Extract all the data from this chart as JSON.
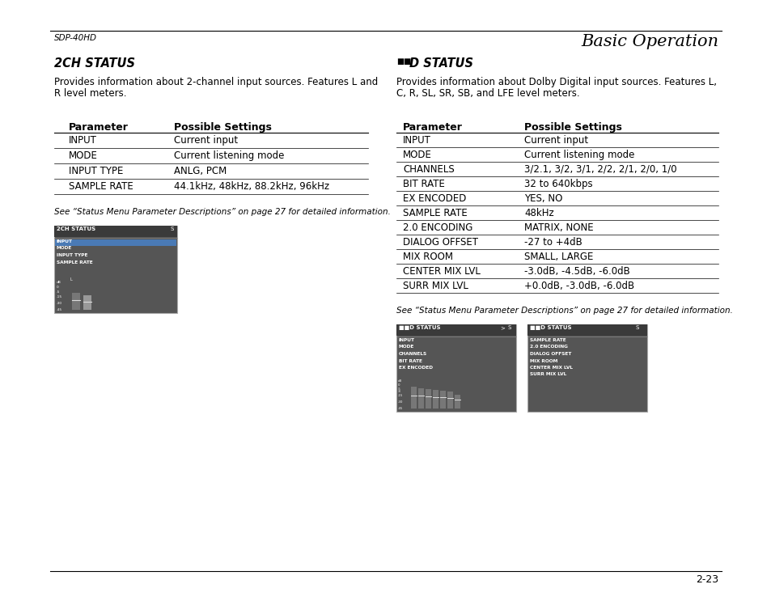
{
  "page_bg": "#ffffff",
  "header_left": "SDP-40HD",
  "header_right": "Basic Operation",
  "footer_right": "2-23",
  "left_section_title": "2CH STATUS",
  "left_desc1": "Provides information about 2-channel input sources. Features L and",
  "left_desc2": "R level meters.",
  "left_table": [
    [
      "INPUT",
      "Current input"
    ],
    [
      "MODE",
      "Current listening mode"
    ],
    [
      "INPUT TYPE",
      "ANLG, PCM"
    ],
    [
      "SAMPLE RATE",
      "44.1kHz, 48kHz, 88.2kHz, 96kHz"
    ]
  ],
  "left_note": "See “Status Menu Parameter Descriptions” on page 27 for detailed information.",
  "right_section_title": "D STATUS",
  "right_desc1": "Provides information about Dolby Digital input sources. Features L,",
  "right_desc2": "C, R, SL, SR, SB, and LFE level meters.",
  "right_table": [
    [
      "INPUT",
      "Current input"
    ],
    [
      "MODE",
      "Current listening mode"
    ],
    [
      "CHANNELS",
      "3/2.1, 3/2, 3/1, 2/2, 2/1, 2/0, 1/0"
    ],
    [
      "BIT RATE",
      "32 to 640kbps"
    ],
    [
      "EX ENCODED",
      "YES, NO"
    ],
    [
      "SAMPLE RATE",
      "48kHz"
    ],
    [
      "2.0 ENCODING",
      "MATRIX, NONE"
    ],
    [
      "DIALOG OFFSET",
      "-27 to +4dB"
    ],
    [
      "MIX ROOM",
      "SMALL, LARGE"
    ],
    [
      "CENTER MIX LVL",
      "-3.0dB, -4.5dB, -6.0dB"
    ],
    [
      "SURR MIX LVL",
      "+0.0dB, -3.0dB, -6.0dB"
    ]
  ],
  "right_note": "See “Status Menu Parameter Descriptions” on page 27 for detailed information.",
  "screen_bg": "#555555",
  "screen_title_bg": "#3a3a3a",
  "screen_text_color": "#ffffff"
}
